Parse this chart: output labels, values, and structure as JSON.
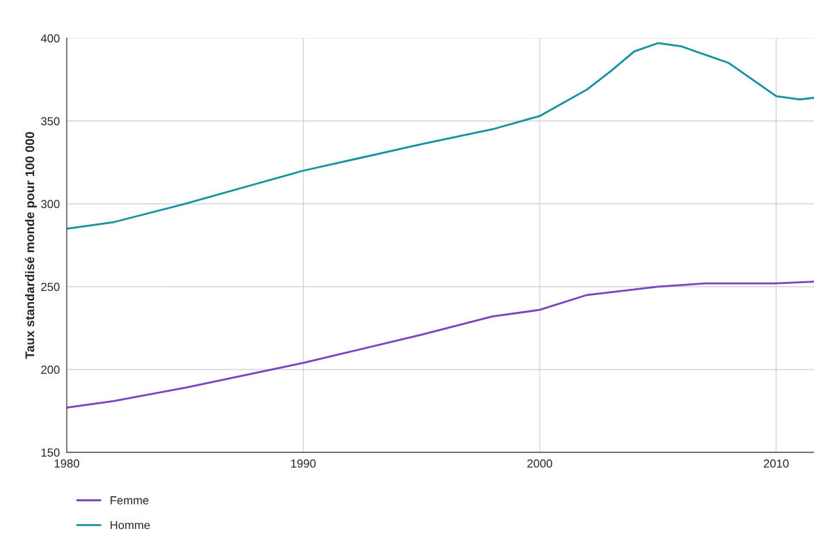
{
  "chart_data": {
    "type": "line",
    "ylabel": "Taux standardisé monde pour 100 000",
    "xlim": [
      1980,
      2011.6
    ],
    "xticks": [
      1980,
      1990,
      2000,
      2010
    ],
    "ylim": [
      150,
      400
    ],
    "yticks": [
      150,
      200,
      250,
      300,
      350,
      400
    ],
    "grid": true,
    "legend": "bottom left",
    "line_style": "solid",
    "series": [
      {
        "name": "Femme",
        "color": "#7a45bf",
        "x": [
          1980,
          1982,
          1985,
          1990,
          1995,
          1998,
          2000,
          2002,
          2005,
          2007,
          2010,
          2011.6
        ],
        "values": [
          177,
          181,
          189,
          204,
          221,
          232,
          236,
          245,
          250,
          252,
          252,
          253
        ]
      },
      {
        "name": "Homme",
        "color": "#17939f",
        "x": [
          1980,
          1982,
          1985,
          1988,
          1990,
          1995,
          1998,
          2000,
          2002,
          2003,
          2004,
          2005,
          2006,
          2008,
          2010,
          2011,
          2011.6
        ],
        "values": [
          285,
          289,
          300,
          312,
          320,
          336,
          345,
          353,
          369,
          380,
          392,
          397,
          395,
          385,
          365,
          363,
          364
        ]
      }
    ]
  }
}
